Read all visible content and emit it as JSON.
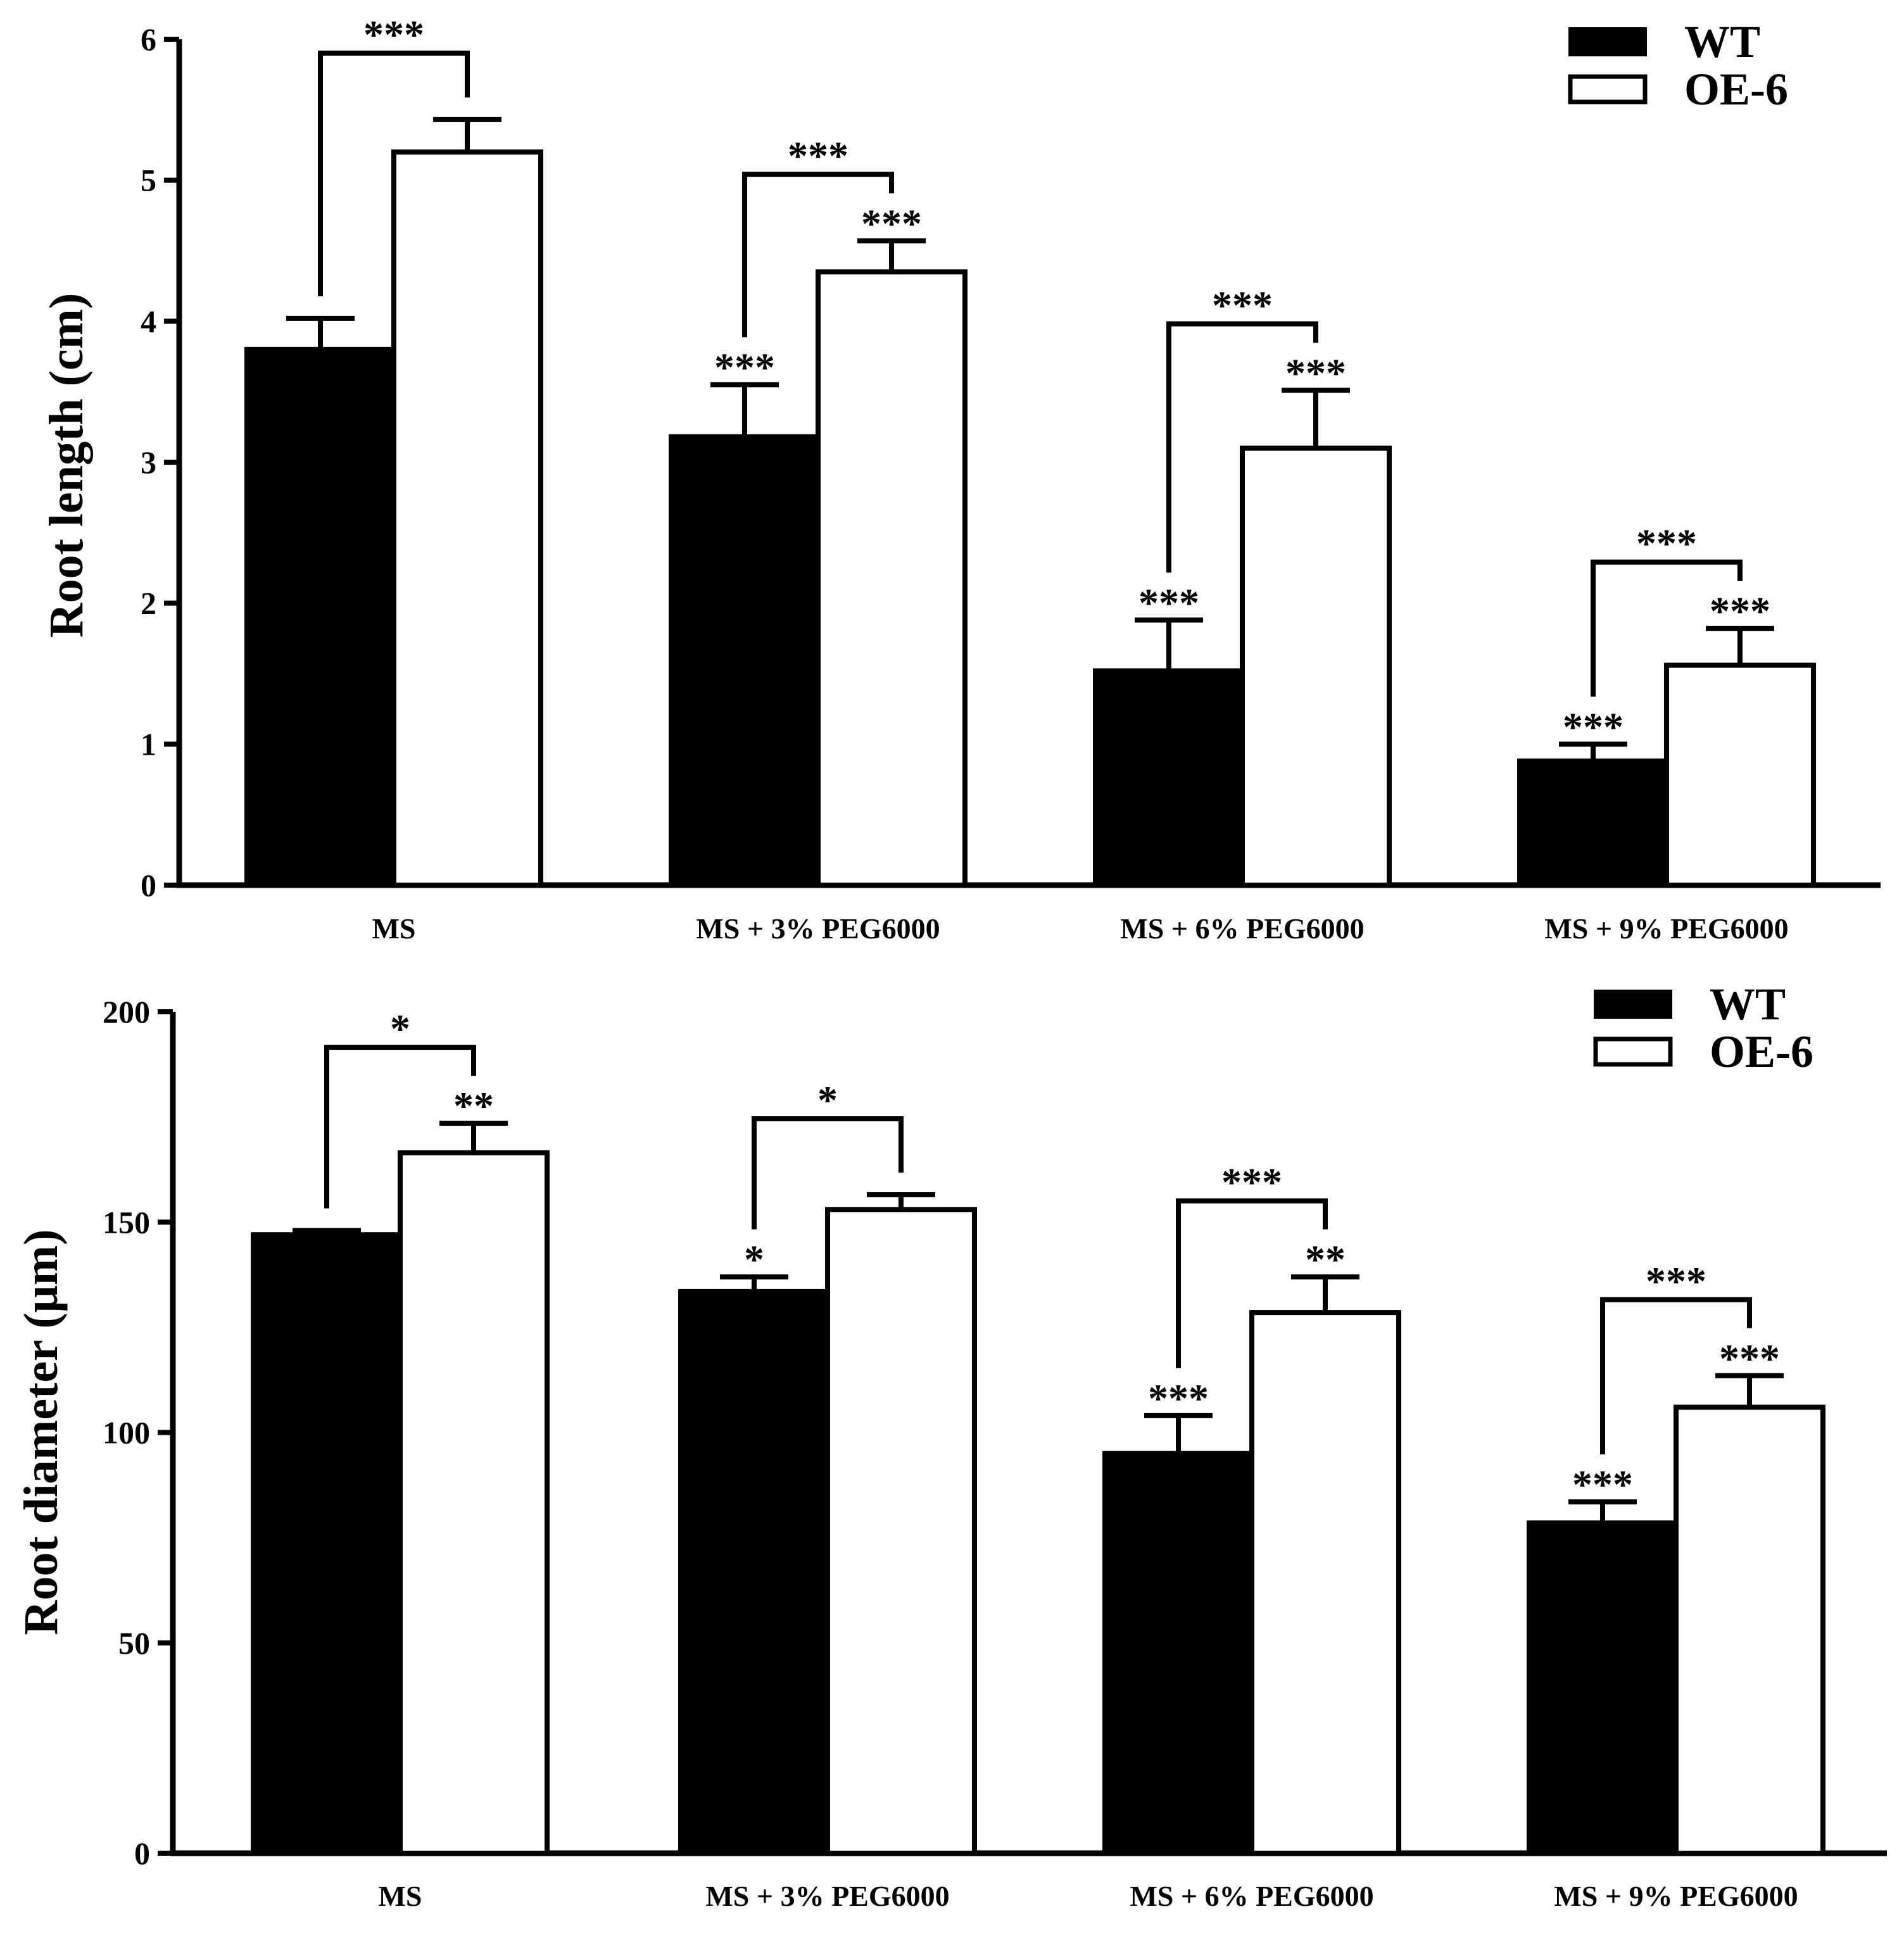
{
  "chart_data": [
    {
      "type": "bar",
      "title": "",
      "xlabel": "",
      "ylabel": "Root length (cm)",
      "ylim": [
        0,
        6
      ],
      "yticks": [
        0,
        1,
        2,
        3,
        4,
        5,
        6
      ],
      "categories": [
        "MS",
        "MS + 3% PEG6000",
        "MS + 6% PEG6000",
        "MS + 9% PEG6000"
      ],
      "legend_position": "top-right",
      "series": [
        {
          "name": "WT",
          "color": "#000000",
          "values": [
            3.8,
            3.18,
            1.52,
            0.88
          ],
          "errors": [
            0.22,
            0.37,
            0.36,
            0.12
          ],
          "labels": [
            "",
            "***",
            "***",
            "***"
          ]
        },
        {
          "name": "OE-6",
          "color": "#ffffff",
          "values": [
            5.2,
            4.35,
            3.1,
            1.56
          ],
          "errors": [
            0.23,
            0.22,
            0.41,
            0.26
          ],
          "labels": [
            "",
            "***",
            "***",
            "***"
          ]
        }
      ],
      "comparisons": [
        "***",
        "***",
        "***",
        "***"
      ]
    },
    {
      "type": "bar",
      "title": "",
      "xlabel": "",
      "ylabel": "Root diameter (μm)",
      "ylim": [
        0,
        200
      ],
      "yticks": [
        0,
        50,
        100,
        150,
        200
      ],
      "categories": [
        "MS",
        "MS + 3% PEG6000",
        "MS + 6% PEG6000",
        "MS + 9% PEG6000"
      ],
      "legend_position": "top-right",
      "series": [
        {
          "name": "WT",
          "color": "#000000",
          "values": [
            147,
            133.5,
            95,
            78.5
          ],
          "errors": [
            1,
            3.5,
            9,
            5
          ],
          "labels": [
            "",
            "*",
            "***",
            "***"
          ]
        },
        {
          "name": "OE-6",
          "color": "#ffffff",
          "values": [
            166.5,
            153,
            128.5,
            106
          ],
          "errors": [
            7,
            3.5,
            8.5,
            7.5
          ],
          "labels": [
            "**",
            "",
            "**",
            "***"
          ]
        }
      ],
      "comparisons": [
        "*",
        "*",
        "***",
        "***"
      ]
    }
  ]
}
